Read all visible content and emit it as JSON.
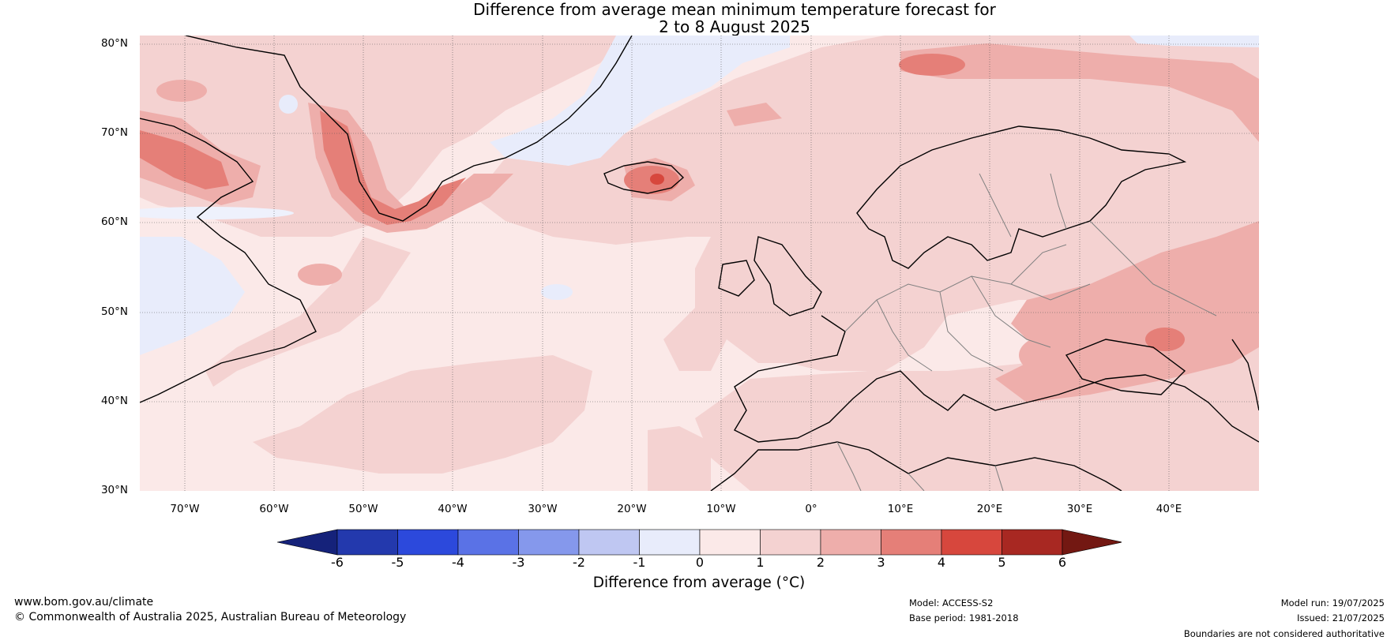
{
  "header": {
    "title_line1": "Difference from average mean minimum temperature forecast for",
    "title_line2": "2 to 8 August 2025"
  },
  "map": {
    "region": "North Atlantic and Europe",
    "lat_labels": [
      "80°N",
      "70°N",
      "60°N",
      "50°N",
      "40°N",
      "30°N"
    ],
    "lon_labels": [
      "70°W",
      "60°W",
      "50°W",
      "40°W",
      "30°W",
      "20°W",
      "10°W",
      "0°",
      "10°E",
      "20°E",
      "30°E",
      "40°E"
    ],
    "lat_range": [
      30,
      81
    ],
    "lon_range": [
      -75,
      50
    ],
    "gridlines": true,
    "coastline_color": "#000000",
    "border_color": "#808080",
    "icons": [
      "land-coastline",
      "country-borders"
    ]
  },
  "colorbar": {
    "label": "Difference from average (°C)",
    "ticks": [
      "-6",
      "-5",
      "-4",
      "-3",
      "-2",
      "-1",
      "0",
      "1",
      "2",
      "3",
      "4",
      "5",
      "6"
    ],
    "colors": [
      "#15227a",
      "#2339ad",
      "#2c49dc",
      "#5a72e6",
      "#8598ec",
      "#bfc7f2",
      "#e8ecfb",
      "#fbe9e8",
      "#f4d2d1",
      "#eeaeab",
      "#e57f78",
      "#d7473d",
      "#a82822",
      "#731812"
    ]
  },
  "footer": {
    "website": "www.bom.gov.au/climate",
    "copyright": "© Commonwealth of Australia 2025, Australian Bureau of Meteorology",
    "model": "Model: ACCESS-S2",
    "base_period": "Base period: 1981-2018",
    "model_run": "Model run: 19/07/2025",
    "issued": "Issued: 21/07/2025",
    "disclaimer": "Boundaries are not considered authoritative"
  }
}
